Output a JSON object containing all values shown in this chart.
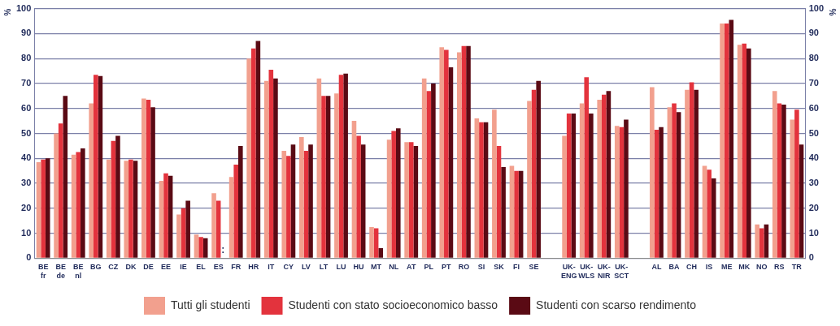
{
  "chart_data": {
    "type": "bar",
    "categories": [
      "BE\nfr",
      "BE\nde",
      "BE\nnl",
      "BG",
      "CZ",
      "DK",
      "DE",
      "EE",
      "IE",
      "EL",
      "ES",
      "FR",
      "HR",
      "IT",
      "CY",
      "LV",
      "LT",
      "LU",
      "HU",
      "MT",
      "NL",
      "AT",
      "PL",
      "PT",
      "RO",
      "SI",
      "SK",
      "FI",
      "SE",
      null,
      "UK-\nENG",
      "UK-\nWLS",
      "UK-\nNIR",
      "UK-\nSCT",
      null,
      "AL",
      "BA",
      "CH",
      "IS",
      "ME",
      "MK",
      "NO",
      "RS",
      "TR"
    ],
    "series": [
      {
        "name": "Tutti gli studenti",
        "color": "#f2a08e",
        "values": [
          38.5,
          50,
          41.5,
          62,
          39.5,
          39,
          64,
          31,
          17.5,
          9.5,
          26,
          32.5,
          80,
          71,
          43,
          48.5,
          72,
          66,
          55,
          12.5,
          47.5,
          46.5,
          72,
          84.5,
          82.5,
          56,
          59.5,
          37,
          63,
          null,
          49,
          62,
          63.5,
          53,
          null,
          68.5,
          60.5,
          67.5,
          37,
          94,
          85.5,
          13.5,
          67,
          55.5
        ]
      },
      {
        "name": "Studenti con stato socioeconomico basso",
        "color": "#e3333d",
        "values": [
          39.5,
          54,
          42.5,
          73.5,
          47,
          39.5,
          63.5,
          34,
          20,
          8.5,
          23,
          37.5,
          84,
          75.5,
          41,
          43,
          65,
          73.5,
          49,
          12,
          51,
          46.5,
          67,
          83.5,
          85,
          54.5,
          45,
          35,
          67.5,
          null,
          58,
          72.5,
          65.5,
          52.5,
          null,
          51.5,
          62,
          70.5,
          35.5,
          94,
          86,
          12,
          62,
          59.5
        ]
      },
      {
        "name": "Studenti con scarso rendimento",
        "color": "#5a0a14",
        "values": [
          40,
          65,
          44,
          73,
          49,
          39,
          60.5,
          33,
          23,
          8,
          null,
          45,
          87,
          72,
          45.5,
          45.5,
          65,
          74,
          45.5,
          4,
          52,
          45,
          70,
          76.5,
          85,
          54.5,
          36.5,
          35,
          71,
          null,
          58,
          58,
          67,
          55.5,
          null,
          52.5,
          58.5,
          67.5,
          32,
          95.5,
          84,
          13.5,
          61.5,
          45.5
        ]
      }
    ],
    "ylabel": "%",
    "y2label": "%",
    "ylim": [
      0,
      100
    ],
    "yticks": [
      0,
      10,
      20,
      30,
      40,
      50,
      60,
      70,
      80,
      90,
      100
    ],
    "y2lim": [
      0,
      100
    ],
    "y2ticks": [
      0,
      10,
      20,
      30,
      40,
      50,
      60,
      70,
      80,
      90,
      100
    ],
    "annotations": [
      {
        "text": ":",
        "x": "ES",
        "y": 0
      }
    ],
    "grid": "y",
    "legend": "bottom"
  }
}
